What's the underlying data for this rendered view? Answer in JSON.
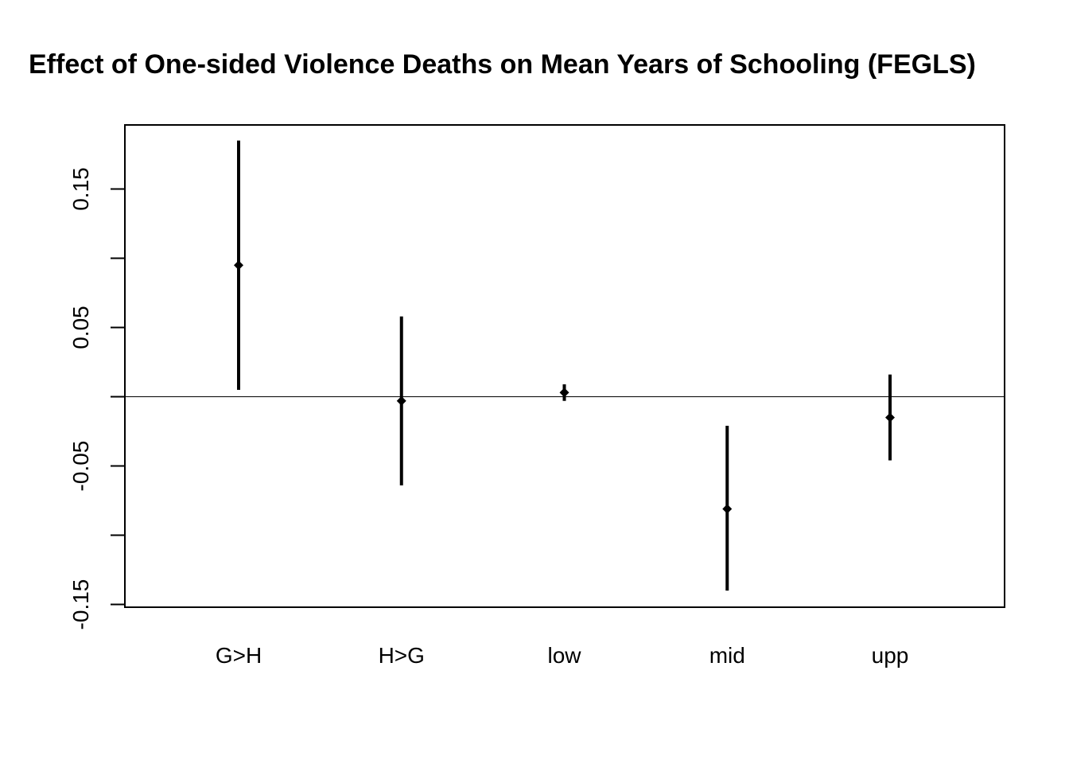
{
  "chart_data": {
    "type": "scatter",
    "title": "Effect of One-sided Violence Deaths on Mean Years of Schooling (FEGLS)",
    "xlabel": "",
    "ylabel": "",
    "categories": [
      "G>H",
      "H>G",
      "low",
      "mid",
      "upp"
    ],
    "estimates": [
      0.095,
      -0.003,
      0.003,
      -0.081,
      -0.015
    ],
    "ci_lower": [
      0.005,
      -0.064,
      -0.003,
      -0.14,
      -0.046
    ],
    "ci_upper": [
      0.185,
      0.058,
      0.009,
      -0.021,
      0.016
    ],
    "ylim": [
      -0.152,
      0.198
    ],
    "yticks": [
      -0.15,
      -0.1,
      -0.05,
      0.0,
      0.05,
      0.1,
      0.15
    ],
    "ytick_labels": [
      "-0.15",
      "",
      "-0.05",
      "",
      "0.05",
      "",
      "0.15"
    ],
    "reference_line": 0,
    "grid": false,
    "colors": {
      "marker": "#000000",
      "errorbar": "#000000",
      "axis": "#000000",
      "reference_line": "#000000"
    }
  }
}
